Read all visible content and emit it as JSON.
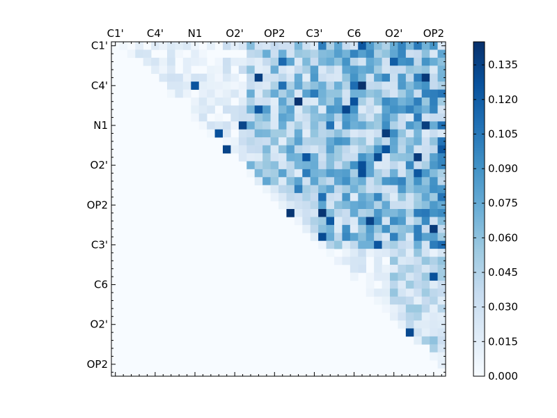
{
  "chart_data": {
    "type": "heatmap",
    "title": "",
    "xlabel": "",
    "ylabel": "",
    "colormap": "Blues",
    "color_low": "#f7fbff",
    "color_high": "#08306b",
    "x_tick_labels": [
      "C1'",
      "C4'",
      "N1",
      "O2'",
      "OP2",
      "C3'",
      "C6",
      "O2'",
      "OP2"
    ],
    "y_tick_labels": [
      "C1'",
      "C4'",
      "N1",
      "O2'",
      "OP2",
      "C3'",
      "C6",
      "O2'",
      "OP2"
    ],
    "grid_size": 42,
    "label_every": 5,
    "vmin": 0.0,
    "vmax": 0.145,
    "colorbar_ticks": [
      "0.000",
      "0.015",
      "0.030",
      "0.045",
      "0.060",
      "0.075",
      "0.090",
      "0.105",
      "0.120",
      "0.135"
    ],
    "matrix_structure": "upper-triangular (values only for column > row)",
    "matrix_seed": 7
  }
}
